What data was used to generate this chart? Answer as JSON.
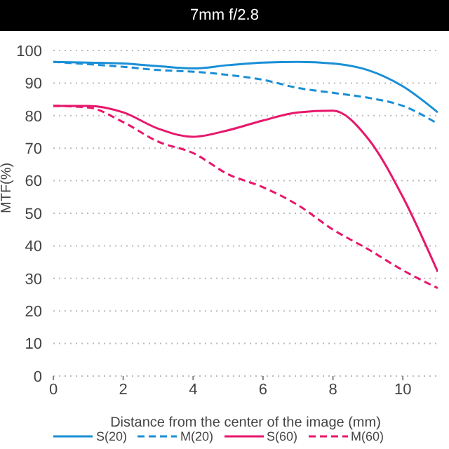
{
  "chart_data": {
    "type": "line",
    "title": "7mm f/2.8",
    "xlabel": "Distance from the center of the image (mm)",
    "ylabel": "MTF(%)",
    "x": [
      0,
      1,
      2,
      3,
      4,
      5,
      6,
      7,
      8,
      9,
      10,
      11
    ],
    "series": [
      {
        "name": "S(20)",
        "color": "#1a8fd6",
        "line_style": "solid",
        "values": [
          96.5,
          96.3,
          96,
          95.2,
          94.5,
          95.5,
          96.3,
          96.5,
          96,
          94,
          89,
          81
        ]
      },
      {
        "name": "M(20)",
        "color": "#1a8fd6",
        "line_style": "dashed",
        "values": [
          96.5,
          95.8,
          95,
          94,
          93.5,
          92.5,
          91,
          88.5,
          87,
          85.5,
          83,
          77.5
        ]
      },
      {
        "name": "S(60)",
        "color": "#e8176c",
        "line_style": "solid",
        "values": [
          83,
          83,
          81,
          76,
          73.5,
          75.5,
          78.5,
          81,
          81.5,
          73,
          55,
          32
        ]
      },
      {
        "name": "M(60)",
        "color": "#e8176c",
        "line_style": "dashed",
        "values": [
          83,
          82.5,
          78,
          72,
          68.5,
          62,
          58,
          52.5,
          45,
          39,
          32.5,
          27
        ]
      }
    ],
    "xlim": [
      0,
      11
    ],
    "xticks": [
      0,
      2,
      4,
      6,
      8,
      10
    ],
    "ylim": [
      0,
      100
    ],
    "yticks": [
      0,
      10,
      20,
      30,
      40,
      50,
      60,
      70,
      80,
      90,
      100
    ],
    "grid": "y",
    "legend": "bottom",
    "marker": "none"
  }
}
